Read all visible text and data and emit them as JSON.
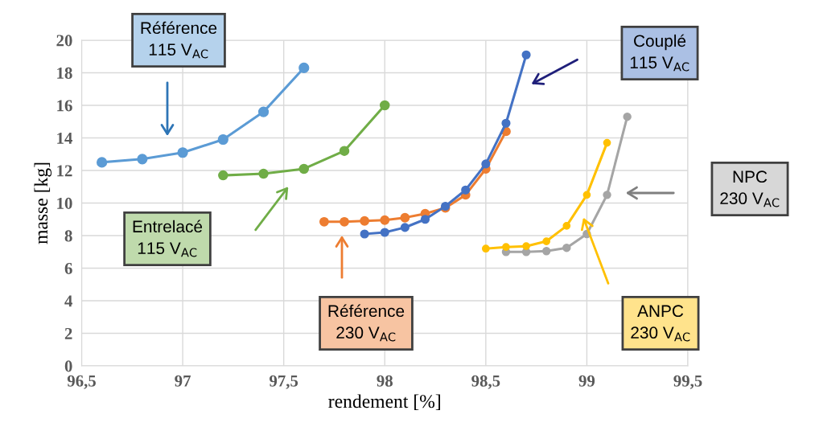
{
  "chart_data": {
    "type": "line",
    "xlabel": "rendement [%]",
    "ylabel": "masse [kg]",
    "xlim": [
      96.5,
      99.5
    ],
    "xticks": [
      {
        "value": 96.5,
        "label": "96,5"
      },
      97,
      {
        "value": 97.5,
        "label": "97,5"
      },
      98,
      {
        "value": 98.5,
        "label": "98,5"
      },
      99,
      {
        "value": 99.5,
        "label": "99,5"
      }
    ],
    "ylim": [
      0,
      20
    ],
    "yticks": [
      0,
      2,
      4,
      6,
      8,
      10,
      12,
      14,
      16,
      18,
      20
    ],
    "grid": true,
    "marker": "circle",
    "line_style": "solid",
    "series": [
      {
        "color": "#5b9bd5",
        "x": [
          96.6,
          96.8,
          97.0,
          97.2,
          97.4,
          97.6
        ],
        "values": [
          12.5,
          12.7,
          13.1,
          13.9,
          15.6,
          18.3
        ]
      },
      {
        "color": "#70ad47",
        "x": [
          97.2,
          97.4,
          97.6,
          97.8,
          98.0
        ],
        "values": [
          11.7,
          11.8,
          12.1,
          13.2,
          16.0
        ]
      },
      {
        "color": "#ed7d31",
        "x": [
          97.7,
          97.8,
          97.9,
          98.0,
          98.1,
          98.2,
          98.3,
          98.4,
          98.5,
          98.6
        ],
        "values": [
          8.85,
          8.85,
          8.9,
          8.95,
          9.1,
          9.35,
          9.7,
          10.5,
          12.1,
          14.4
        ]
      },
      {
        "color": "#4472c4",
        "x": [
          97.9,
          98.0,
          98.1,
          98.2,
          98.3,
          98.4,
          98.5,
          98.6,
          98.7
        ],
        "values": [
          8.1,
          8.2,
          8.5,
          9.0,
          9.8,
          10.8,
          12.4,
          14.9,
          19.1
        ]
      },
      {
        "color": "#a5a5a5",
        "x": [
          98.6,
          98.7,
          98.8,
          98.9,
          99.0,
          99.1,
          99.2
        ],
        "values": [
          7.0,
          7.0,
          7.05,
          7.25,
          8.1,
          10.5,
          15.3
        ]
      },
      {
        "color": "#ffc000",
        "x": [
          98.5,
          98.6,
          98.7,
          98.8,
          98.9,
          99.0,
          99.1
        ],
        "values": [
          7.2,
          7.3,
          7.35,
          7.65,
          8.6,
          10.5,
          13.7
        ]
      }
    ],
    "annotations": [
      "Référence\n115 V$_{AC}$",
      "Entrelacé\n115 V$_{AC}$",
      "Référence\n230 V$_{AC}$",
      "Couplé\n115 V$_{AC}$",
      "NPC\n230 V$_{AC}$",
      "ANPC\n230 V$_{AC}$"
    ]
  }
}
